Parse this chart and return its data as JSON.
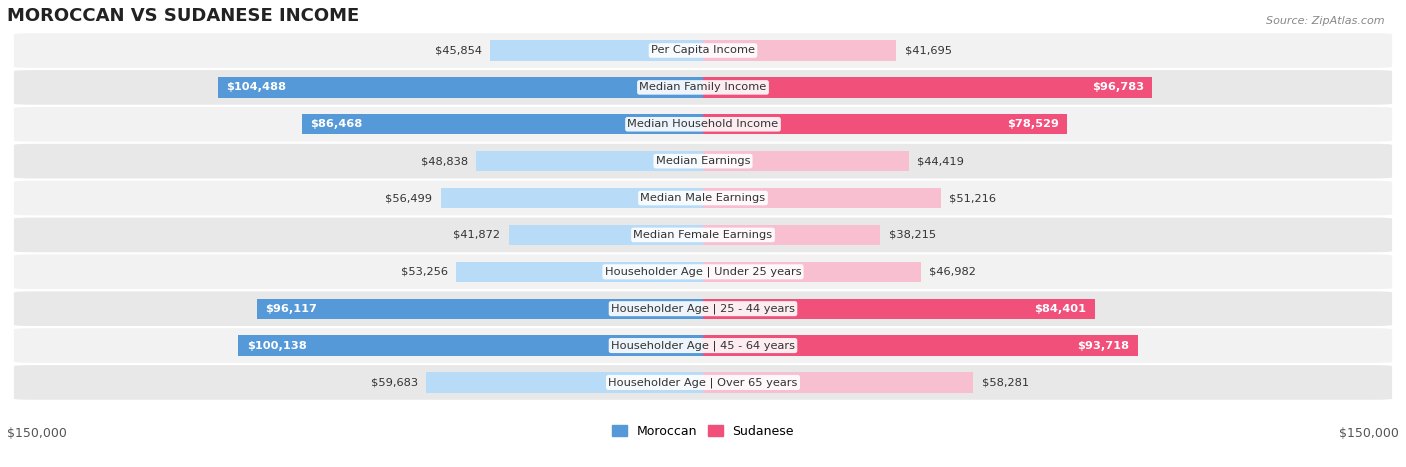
{
  "title": "MOROCCAN VS SUDANESE INCOME",
  "source": "Source: ZipAtlas.com",
  "categories": [
    "Per Capita Income",
    "Median Family Income",
    "Median Household Income",
    "Median Earnings",
    "Median Male Earnings",
    "Median Female Earnings",
    "Householder Age | Under 25 years",
    "Householder Age | 25 - 44 years",
    "Householder Age | 45 - 64 years",
    "Householder Age | Over 65 years"
  ],
  "moroccan_values": [
    45854,
    104488,
    86468,
    48838,
    56499,
    41872,
    53256,
    96117,
    100138,
    59683
  ],
  "sudanese_values": [
    41695,
    96783,
    78529,
    44419,
    51216,
    38215,
    46982,
    84401,
    93718,
    58281
  ],
  "moroccan_color_light": "#b8dcf8",
  "moroccan_color_dark": "#5599d8",
  "sudanese_color_light": "#f8bfd0",
  "sudanese_color_dark": "#f0507a",
  "max_value": 150000,
  "background_row_even": "#f2f2f2",
  "background_row_odd": "#e8e8e8",
  "xlabel_left": "$150,000",
  "xlabel_right": "$150,000",
  "legend_moroccan": "Moroccan",
  "legend_sudanese": "Sudanese",
  "title_fontsize": 13,
  "label_fontsize": 8.2,
  "value_fontsize": 8.2,
  "tick_fontsize": 9,
  "mor_inside_threshold": 65000,
  "sud_inside_threshold": 65000
}
